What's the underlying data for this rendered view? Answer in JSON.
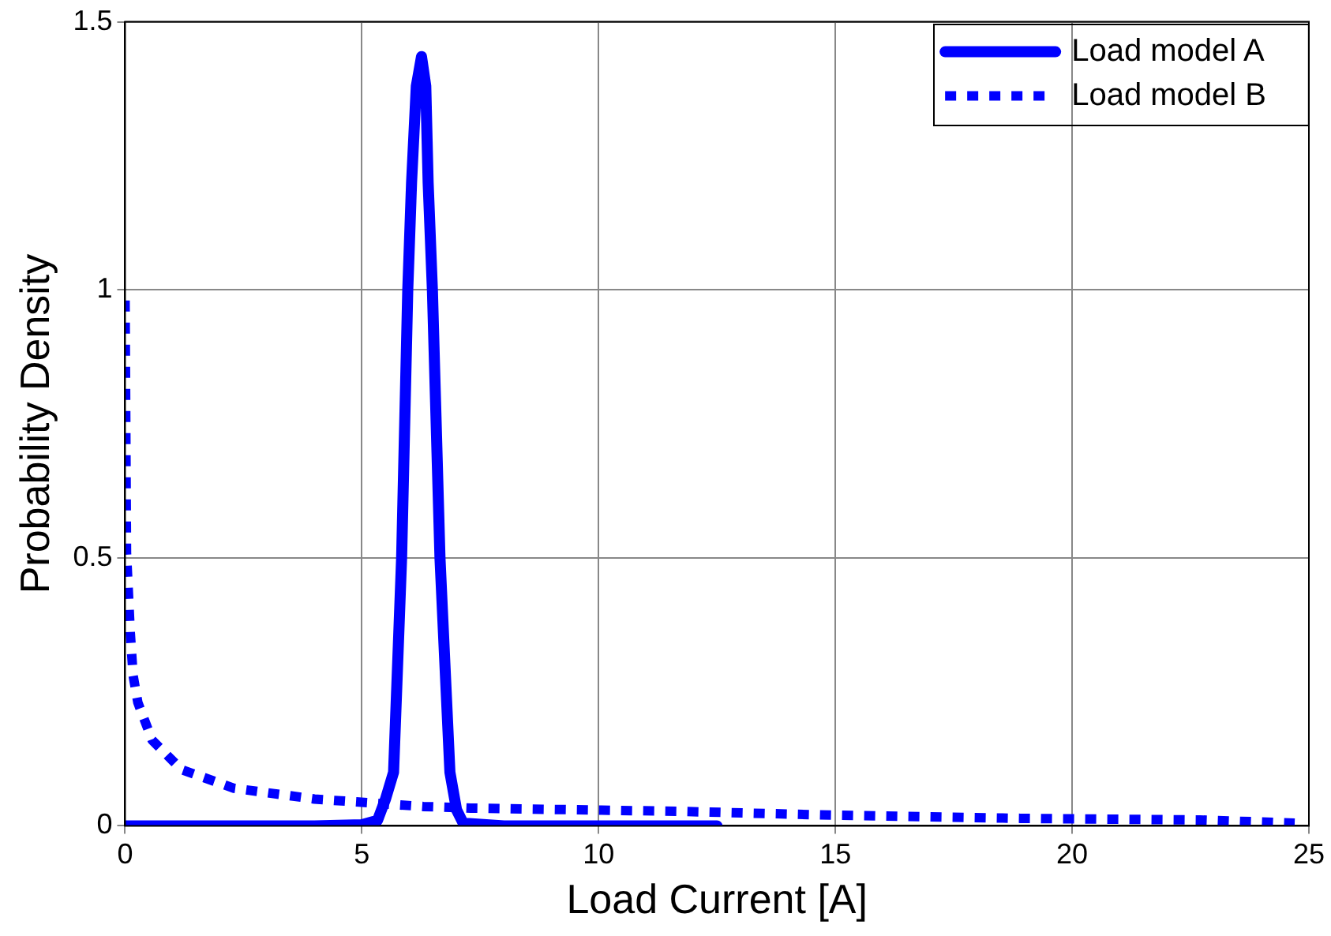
{
  "chart_data": {
    "type": "line",
    "xlabel": "Load Current [A]",
    "ylabel": "Probability Density",
    "xlim": [
      0,
      25
    ],
    "xticks": [
      0,
      5,
      10,
      15,
      20,
      25
    ],
    "ylim": [
      0,
      1.5
    ],
    "yticks": [
      0,
      0.5,
      1,
      1.5
    ],
    "grid": true,
    "legend": "top right",
    "marker": "none",
    "series": [
      {
        "name": "Load model A",
        "color": "#0000ff",
        "line_style": "solid",
        "x": [
          0,
          4,
          5,
          5.33,
          5.5,
          5.67,
          5.84,
          5.97,
          6.05,
          6.15,
          6.26,
          6.35,
          6.4,
          6.49,
          6.65,
          6.86,
          7.0,
          7.14,
          8,
          10,
          12.5
        ],
        "values": [
          0,
          0,
          0.002,
          0.01,
          0.05,
          0.1,
          0.5,
          1.0,
          1.2,
          1.38,
          1.435,
          1.38,
          1.2,
          1.0,
          0.5,
          0.1,
          0.03,
          0.005,
          0,
          0,
          0
        ]
      },
      {
        "name": "Load model B",
        "color": "#0000ff",
        "line_style": "dotted",
        "x": [
          0,
          0.03,
          0.11,
          0.17,
          0.27,
          0.57,
          1.19,
          2.3,
          4.0,
          6.3,
          7.3,
          11.7,
          14.9,
          18.9,
          22.7,
          24.7
        ],
        "values": [
          0.98,
          0.51,
          0.36,
          0.28,
          0.23,
          0.16,
          0.105,
          0.07,
          0.05,
          0.036,
          0.033,
          0.027,
          0.02,
          0.014,
          0.011,
          0.005
        ]
      }
    ]
  }
}
